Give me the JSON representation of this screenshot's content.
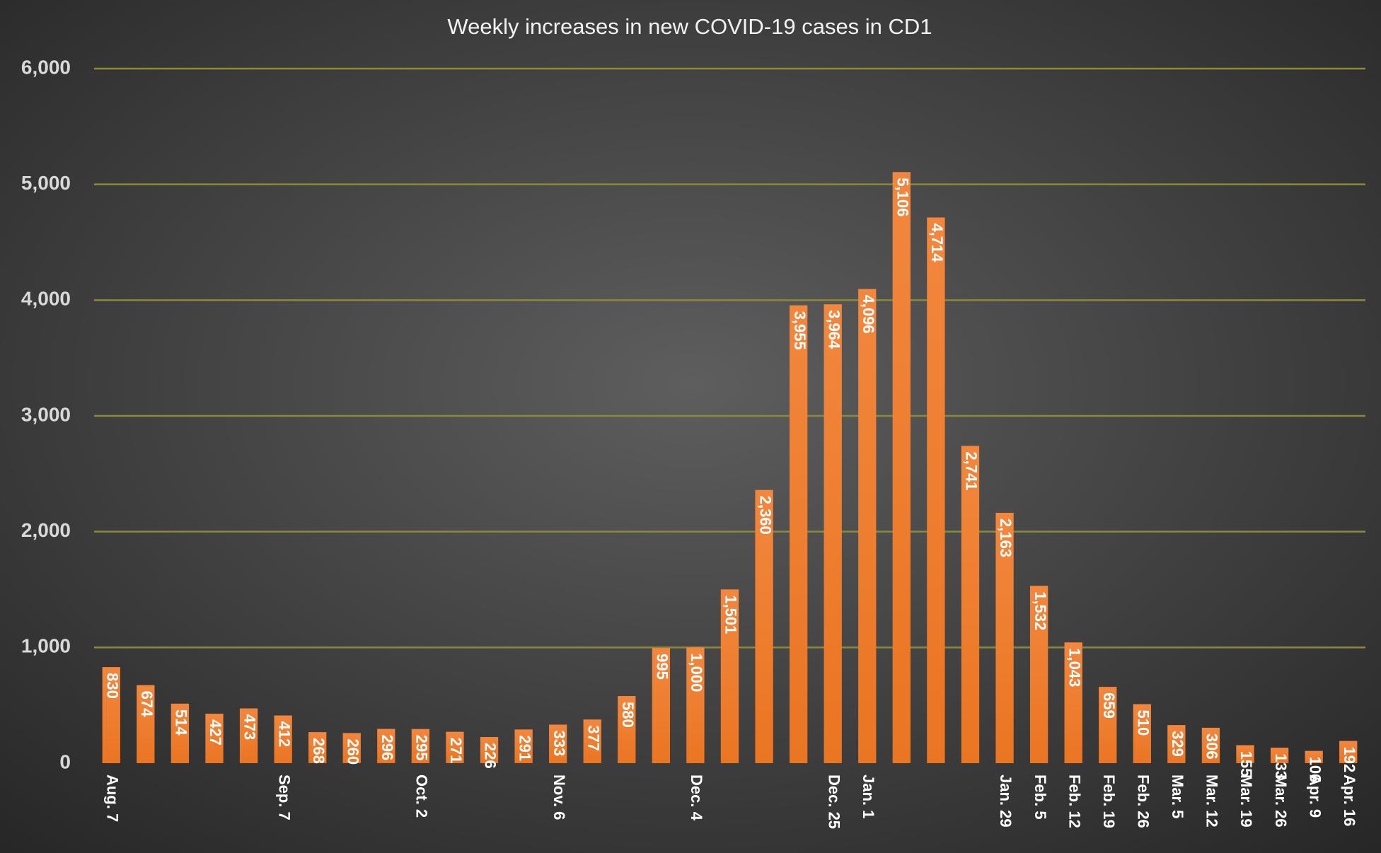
{
  "chart_data": {
    "type": "bar",
    "title": "Weekly increases in new COVID-19 cases in CD1",
    "categories": [
      "Aug. 7",
      null,
      null,
      null,
      null,
      "Sep. 7",
      null,
      null,
      null,
      "Oct. 2",
      null,
      null,
      null,
      "Nov. 6",
      null,
      null,
      null,
      "Dec. 4",
      null,
      null,
      null,
      "Dec. 25",
      "Jan. 1",
      null,
      null,
      null,
      "Jan. 29",
      "Feb. 5",
      "Feb. 12",
      "Feb. 19",
      "Feb. 26",
      "Mar. 5",
      "Mar. 12",
      "Mar. 19",
      "Mar. 26",
      "Apr. 9",
      "Apr. 16"
    ],
    "values": [
      830,
      674,
      514,
      427,
      473,
      412,
      268,
      260,
      296,
      295,
      271,
      226,
      291,
      333,
      377,
      580,
      995,
      1000,
      1501,
      2360,
      3955,
      3964,
      4096,
      5106,
      4714,
      2741,
      2163,
      1532,
      1043,
      659,
      510,
      329,
      306,
      155,
      133,
      106,
      192
    ],
    "value_labels": [
      "830",
      "674",
      "514",
      "427",
      "473",
      "412",
      "268",
      "260",
      "296",
      "295",
      "271",
      "226",
      "291",
      "333",
      "377",
      "580",
      "995",
      "1,000",
      "1,501",
      "2,360",
      "3,955",
      "3,964",
      "4,096",
      "5,106",
      "4,714",
      "2,741",
      "2,163",
      "1,532",
      "1,043",
      "659",
      "510",
      "329",
      "306",
      "155",
      "133",
      "106",
      "192"
    ],
    "color": "#f07f2e",
    "ylim": [
      0,
      6000
    ],
    "yticks": [
      0,
      {
        "value": 1000,
        "label": "1,000"
      },
      {
        "value": 2000,
        "label": "2,000"
      },
      {
        "value": 3000,
        "label": "3,000"
      },
      {
        "value": 4000,
        "label": "4,000"
      },
      {
        "value": 5000,
        "label": "5,000"
      },
      {
        "value": 6000,
        "label": "6,000"
      }
    ],
    "grid": true
  }
}
